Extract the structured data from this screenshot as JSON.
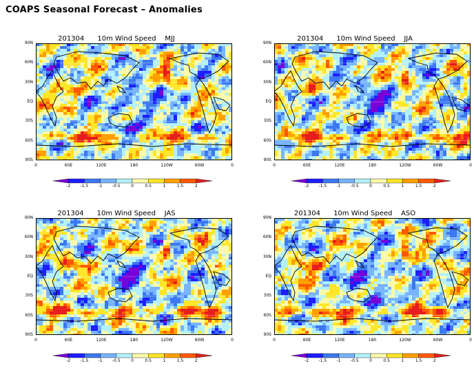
{
  "page": {
    "title": "COAPS Seasonal Forecast – Anomalies"
  },
  "panels": [
    {
      "title": "201304      10m Wind Speed    MJJ",
      "season": "MJJ"
    },
    {
      "title": "201304      10m Wind Speed    JJA",
      "season": "JJA"
    },
    {
      "title": "201304      10m Wind Speed    JAS",
      "season": "JAS"
    },
    {
      "title": "201304      10m Wind Speed    ASO",
      "season": "ASO"
    }
  ],
  "chart_data": {
    "type": "heatmap",
    "title": "COAPS Seasonal Forecast – Anomalies",
    "variable": "10m Wind Speed",
    "init": "201304",
    "seasons": [
      "MJJ",
      "JJA",
      "JAS",
      "ASO"
    ],
    "x_ticks": [
      "0",
      "60E",
      "120E",
      "180",
      "120W",
      "60W",
      "0"
    ],
    "y_ticks": [
      "90N",
      "60N",
      "30N",
      "EQ",
      "30S",
      "60S",
      "90S"
    ],
    "y_tick_labels": [
      "90N",
      "60N",
      "30N",
      "EQ",
      "30S",
      "60S",
      "90S"
    ],
    "xlim": [
      0,
      360
    ],
    "ylim": [
      -90,
      90
    ],
    "colorbar": {
      "ticks": [
        "-2",
        "-1.5",
        "-1",
        "-0.5",
        "0",
        "0.5",
        "1",
        "1.5",
        "2"
      ],
      "levels": [
        -2,
        -1.5,
        -1,
        -0.5,
        0,
        0.5,
        1,
        1.5,
        2
      ],
      "colors": [
        "#7a00d8",
        "#1e1eff",
        "#3c78f0",
        "#78b4ff",
        "#b4f0fa",
        "#fafaaa",
        "#ffe628",
        "#ffa000",
        "#ff5a00",
        "#e61e1e"
      ]
    }
  }
}
